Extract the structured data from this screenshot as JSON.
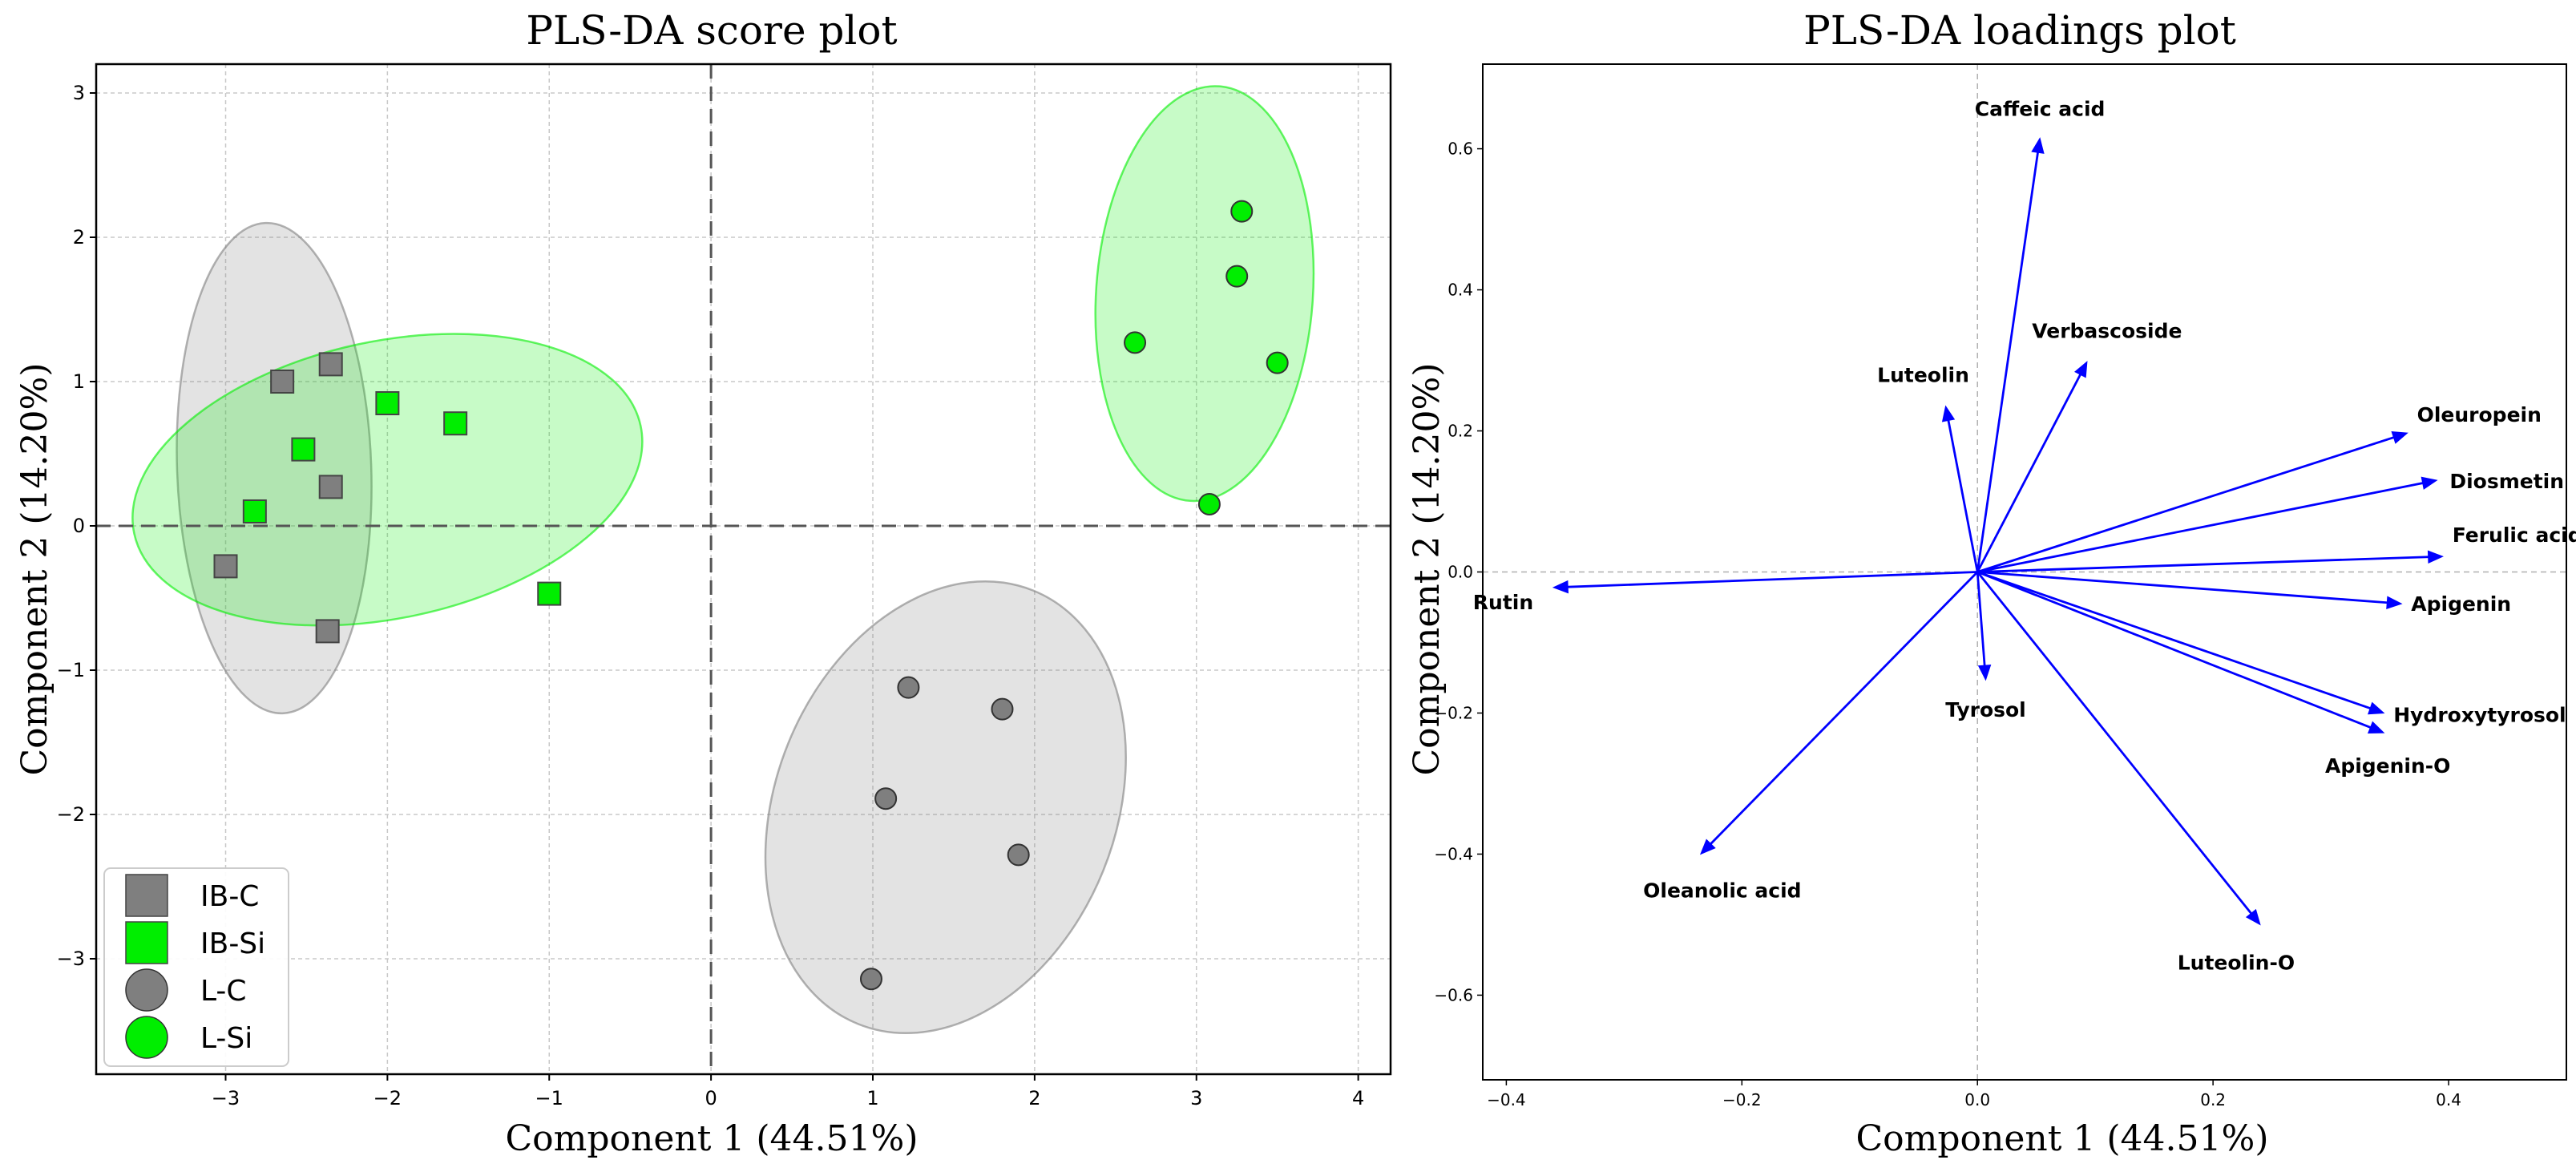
{
  "chart_data": [
    {
      "type": "scatter",
      "title": "PLS-DA score plot",
      "xlabel": "Component 1 (44.51%)",
      "ylabel": "Component 2 (14.20%)",
      "xlim": [
        -3.8,
        4.2
      ],
      "ylim": [
        -3.8,
        3.2
      ],
      "xticks": [
        -3,
        -2,
        -1,
        0,
        1,
        2,
        3,
        4
      ],
      "xtick_labels": [
        "−3",
        "−2",
        "−1",
        "0",
        "1",
        "2",
        "3",
        "4"
      ],
      "yticks": [
        -3,
        -2,
        -1,
        0,
        1,
        2,
        3
      ],
      "ytick_labels": [
        "−3",
        "−2",
        "−1",
        "0",
        "1",
        "2",
        "3"
      ],
      "legend_position": "lower-left",
      "series": [
        {
          "name": "IB-C",
          "marker": "square",
          "color": "#7f7f7f",
          "points": [
            [
              -2.65,
              1.0
            ],
            [
              -2.35,
              1.12
            ],
            [
              -2.35,
              0.27
            ],
            [
              -3.0,
              -0.28
            ],
            [
              -2.37,
              -0.73
            ]
          ]
        },
        {
          "name": "IB-Si",
          "marker": "square",
          "color": "#00ee00",
          "points": [
            [
              -2.0,
              0.85
            ],
            [
              -1.58,
              0.71
            ],
            [
              -2.52,
              0.53
            ],
            [
              -2.82,
              0.1
            ],
            [
              -1.0,
              -0.47
            ]
          ]
        },
        {
          "name": "L-C",
          "marker": "circle",
          "color": "#7f7f7f",
          "points": [
            [
              1.22,
              -1.12
            ],
            [
              1.8,
              -1.27
            ],
            [
              1.08,
              -1.89
            ],
            [
              1.9,
              -2.28
            ],
            [
              0.99,
              -3.14
            ]
          ]
        },
        {
          "name": "L-Si",
          "marker": "circle",
          "color": "#00ee00",
          "points": [
            [
              3.28,
              2.18
            ],
            [
              3.25,
              1.73
            ],
            [
              2.62,
              1.27
            ],
            [
              3.5,
              1.13
            ],
            [
              3.08,
              0.15
            ]
          ]
        }
      ],
      "ellipses": [
        {
          "group": "IB-C",
          "color": "#7f7f7f",
          "center": [
            -2.7,
            0.4
          ],
          "semi_axes": [
            0.6,
            1.7
          ],
          "angle_deg": -2
        },
        {
          "group": "IB-Si",
          "color": "#00ee00",
          "center": [
            -2.0,
            0.32
          ],
          "semi_axes": [
            1.6,
            0.96
          ],
          "angle_deg": -12
        },
        {
          "group": "L-C",
          "color": "#7f7f7f",
          "center": [
            1.45,
            -1.95
          ],
          "semi_axes": [
            1.05,
            1.62
          ],
          "angle_deg": 22
        },
        {
          "group": "L-Si",
          "color": "#00ee00",
          "center": [
            3.05,
            1.61
          ],
          "semi_axes": [
            0.67,
            1.44
          ],
          "angle_deg": 4
        }
      ]
    },
    {
      "type": "biplot-loadings",
      "title": "PLS-DA loadings plot",
      "xlabel": "Component 1 (44.51%)",
      "ylabel": "Component 2 (14.20%)",
      "xlim": [
        -0.42,
        0.5
      ],
      "ylim": [
        -0.72,
        0.72
      ],
      "xticks": [
        -0.4,
        -0.2,
        0.0,
        0.2,
        0.4
      ],
      "xtick_labels": [
        "−0.4",
        "−0.2",
        "0.0",
        "0.2",
        "0.4"
      ],
      "yticks": [
        -0.6,
        -0.4,
        -0.2,
        0.0,
        0.2,
        0.4,
        0.6
      ],
      "ytick_labels": [
        "−0.6",
        "−0.4",
        "−0.2",
        "0.0",
        "0.2",
        "0.4",
        "0.6"
      ],
      "arrow_color": "#0000ff",
      "loadings": [
        {
          "name": "Caffeic acid",
          "x": 0.053,
          "y": 0.615
        },
        {
          "name": "Verbascoside",
          "x": 0.093,
          "y": 0.298
        },
        {
          "name": "Luteolin",
          "x": -0.027,
          "y": 0.235
        },
        {
          "name": "Oleuropein",
          "x": 0.365,
          "y": 0.197
        },
        {
          "name": "Diosmetin",
          "x": 0.39,
          "y": 0.13
        },
        {
          "name": "Ferulic acid",
          "x": 0.395,
          "y": 0.022
        },
        {
          "name": "Rutin",
          "x": -0.36,
          "y": -0.022
        },
        {
          "name": "Apigenin",
          "x": 0.36,
          "y": -0.045
        },
        {
          "name": "Tyrosol",
          "x": 0.007,
          "y": -0.153
        },
        {
          "name": "Hydroxytyrosol",
          "x": 0.345,
          "y": -0.2
        },
        {
          "name": "Apigenin-O",
          "x": 0.345,
          "y": -0.228
        },
        {
          "name": "Oleanolic acid",
          "x": -0.235,
          "y": -0.4
        },
        {
          "name": "Luteolin-O",
          "x": 0.24,
          "y": -0.5
        }
      ]
    }
  ]
}
